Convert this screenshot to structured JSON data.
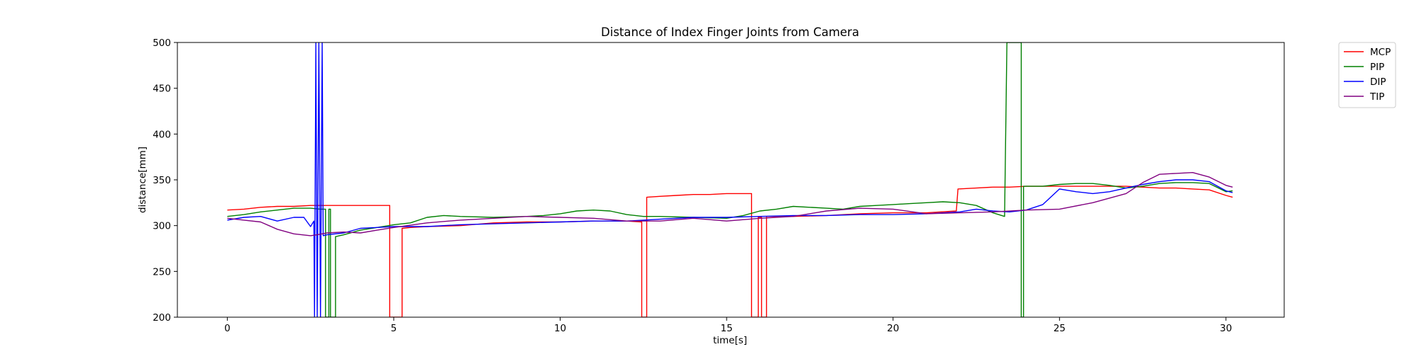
{
  "chart_data": {
    "type": "line",
    "title": "Distance of Index Finger Joints from Camera",
    "xlabel": "time[s]",
    "ylabel": "distance[mm]",
    "xlim": [
      -1.5,
      31.75
    ],
    "ylim": [
      200,
      500
    ],
    "xticks": [
      0,
      5,
      10,
      15,
      20,
      25,
      30
    ],
    "yticks": [
      200,
      250,
      300,
      350,
      400,
      450,
      500
    ],
    "grid": false,
    "legend_position": "outside-top-right",
    "series": [
      {
        "name": "MCP",
        "color": "#ff0000",
        "points": [
          [
            0,
            317
          ],
          [
            0.5,
            318
          ],
          [
            1,
            320
          ],
          [
            1.5,
            321
          ],
          [
            2,
            321
          ],
          [
            2.5,
            322
          ],
          [
            3,
            322
          ],
          [
            3.5,
            322
          ],
          [
            4,
            322
          ],
          [
            4.5,
            322
          ],
          [
            4.88,
            322
          ],
          [
            4.88,
            200
          ],
          [
            5.25,
            200
          ],
          [
            5.25,
            297
          ],
          [
            5.5,
            298
          ],
          [
            6,
            299
          ],
          [
            7,
            300
          ],
          [
            8,
            303
          ],
          [
            9,
            304
          ],
          [
            10,
            304
          ],
          [
            11,
            305
          ],
          [
            12,
            305
          ],
          [
            12.45,
            304
          ],
          [
            12.45,
            200
          ],
          [
            12.6,
            200
          ],
          [
            12.6,
            331
          ],
          [
            13,
            332
          ],
          [
            13.5,
            333
          ],
          [
            14,
            334
          ],
          [
            14.5,
            334
          ],
          [
            15,
            335
          ],
          [
            15.5,
            335
          ],
          [
            15.75,
            335
          ],
          [
            15.75,
            200
          ],
          [
            15.95,
            200
          ],
          [
            15.95,
            309
          ],
          [
            16.05,
            309
          ],
          [
            16.05,
            200
          ],
          [
            16.2,
            200
          ],
          [
            16.2,
            310
          ],
          [
            16.5,
            310
          ],
          [
            17,
            310
          ],
          [
            18,
            311
          ],
          [
            19,
            313
          ],
          [
            20,
            314
          ],
          [
            21,
            314
          ],
          [
            21.9,
            316
          ],
          [
            21.95,
            340
          ],
          [
            22.5,
            341
          ],
          [
            23,
            342
          ],
          [
            23.5,
            342
          ],
          [
            24,
            343
          ],
          [
            24.5,
            343
          ],
          [
            25,
            343
          ],
          [
            25.5,
            343
          ],
          [
            26,
            343
          ],
          [
            26.5,
            343
          ],
          [
            27,
            343
          ],
          [
            27.5,
            342
          ],
          [
            28,
            341
          ],
          [
            28.5,
            341
          ],
          [
            29,
            340
          ],
          [
            29.5,
            339
          ],
          [
            30,
            333
          ],
          [
            30.2,
            331
          ]
        ]
      },
      {
        "name": "PIP",
        "color": "#008000",
        "points": [
          [
            0,
            310
          ],
          [
            0.5,
            312
          ],
          [
            1,
            315
          ],
          [
            1.5,
            317
          ],
          [
            2,
            319
          ],
          [
            2.5,
            319
          ],
          [
            2.8,
            318
          ],
          [
            2.95,
            318
          ],
          [
            2.95,
            200
          ],
          [
            3.05,
            200
          ],
          [
            3.05,
            318
          ],
          [
            3.1,
            318
          ],
          [
            3.1,
            200
          ],
          [
            3.25,
            200
          ],
          [
            3.25,
            288
          ],
          [
            3.5,
            290
          ],
          [
            4,
            295
          ],
          [
            4.5,
            298
          ],
          [
            5,
            301
          ],
          [
            5.5,
            303
          ],
          [
            6,
            309
          ],
          [
            6.5,
            311
          ],
          [
            7,
            310
          ],
          [
            8,
            309
          ],
          [
            9,
            310
          ],
          [
            9.5,
            311
          ],
          [
            10,
            313
          ],
          [
            10.5,
            316
          ],
          [
            11,
            317
          ],
          [
            11.5,
            316
          ],
          [
            12,
            312
          ],
          [
            12.5,
            310
          ],
          [
            13,
            310
          ],
          [
            14,
            309
          ],
          [
            15,
            308
          ],
          [
            15.5,
            311
          ],
          [
            16,
            316
          ],
          [
            16.5,
            318
          ],
          [
            17,
            321
          ],
          [
            17.5,
            320
          ],
          [
            18,
            319
          ],
          [
            18.5,
            318
          ],
          [
            19,
            321
          ],
          [
            19.5,
            322
          ],
          [
            20,
            323
          ],
          [
            20.5,
            324
          ],
          [
            21,
            325
          ],
          [
            21.5,
            326
          ],
          [
            22,
            325
          ],
          [
            22.5,
            322
          ],
          [
            23,
            314
          ],
          [
            23.35,
            310
          ],
          [
            23.42,
            500
          ],
          [
            23.85,
            500
          ],
          [
            23.85,
            200
          ],
          [
            23.92,
            200
          ],
          [
            23.92,
            343
          ],
          [
            24.5,
            343
          ],
          [
            25,
            345
          ],
          [
            25.5,
            346
          ],
          [
            26,
            346
          ],
          [
            26.5,
            344
          ],
          [
            27,
            341
          ],
          [
            27.5,
            343
          ],
          [
            28,
            346
          ],
          [
            28.5,
            347
          ],
          [
            29,
            347
          ],
          [
            29.5,
            346
          ],
          [
            30,
            337
          ],
          [
            30.2,
            338
          ]
        ]
      },
      {
        "name": "DIP",
        "color": "#0000ff",
        "points": [
          [
            0,
            306
          ],
          [
            0.5,
            309
          ],
          [
            1,
            310
          ],
          [
            1.5,
            305
          ],
          [
            2,
            309
          ],
          [
            2.3,
            309
          ],
          [
            2.5,
            299
          ],
          [
            2.6,
            305
          ],
          [
            2.62,
            200
          ],
          [
            2.66,
            500
          ],
          [
            2.7,
            200
          ],
          [
            2.75,
            500
          ],
          [
            2.8,
            200
          ],
          [
            2.85,
            500
          ],
          [
            2.88,
            289
          ],
          [
            3,
            290
          ],
          [
            3.5,
            292
          ],
          [
            4,
            297
          ],
          [
            4.5,
            298
          ],
          [
            5,
            299
          ],
          [
            6,
            299
          ],
          [
            7,
            301
          ],
          [
            8,
            302
          ],
          [
            9,
            303
          ],
          [
            10,
            304
          ],
          [
            11,
            305
          ],
          [
            12,
            305
          ],
          [
            12.5,
            306
          ],
          [
            13,
            307
          ],
          [
            14,
            309
          ],
          [
            15,
            309
          ],
          [
            16,
            310
          ],
          [
            17,
            311
          ],
          [
            18,
            311
          ],
          [
            19,
            312
          ],
          [
            20,
            312
          ],
          [
            21,
            313
          ],
          [
            22,
            315
          ],
          [
            22.5,
            318
          ],
          [
            23,
            316
          ],
          [
            23.5,
            315
          ],
          [
            24,
            317
          ],
          [
            24.5,
            323
          ],
          [
            25,
            340
          ],
          [
            25.5,
            337
          ],
          [
            26,
            335
          ],
          [
            26.5,
            337
          ],
          [
            27,
            341
          ],
          [
            27.5,
            345
          ],
          [
            28,
            348
          ],
          [
            28.5,
            350
          ],
          [
            29,
            350
          ],
          [
            29.5,
            348
          ],
          [
            30,
            338
          ],
          [
            30.2,
            336
          ]
        ]
      },
      {
        "name": "TIP",
        "color": "#800080",
        "points": [
          [
            0,
            308
          ],
          [
            0.5,
            306
          ],
          [
            1,
            304
          ],
          [
            1.5,
            296
          ],
          [
            2,
            291
          ],
          [
            2.5,
            289
          ],
          [
            2.7,
            290
          ],
          [
            3,
            292
          ],
          [
            3.5,
            293
          ],
          [
            4,
            292
          ],
          [
            4.5,
            295
          ],
          [
            5,
            298
          ],
          [
            6,
            303
          ],
          [
            7,
            306
          ],
          [
            8,
            308
          ],
          [
            9,
            310
          ],
          [
            10,
            309
          ],
          [
            11,
            308
          ],
          [
            12,
            305
          ],
          [
            13,
            305
          ],
          [
            14,
            308
          ],
          [
            15,
            305
          ],
          [
            16,
            308
          ],
          [
            17,
            310
          ],
          [
            18,
            316
          ],
          [
            19,
            319
          ],
          [
            20,
            318
          ],
          [
            21,
            313
          ],
          [
            22,
            314
          ],
          [
            23,
            315
          ],
          [
            24,
            317
          ],
          [
            25,
            318
          ],
          [
            26,
            325
          ],
          [
            27,
            335
          ],
          [
            27.5,
            347
          ],
          [
            28,
            356
          ],
          [
            28.5,
            357
          ],
          [
            29,
            358
          ],
          [
            29.5,
            353
          ],
          [
            30,
            344
          ],
          [
            30.2,
            342
          ]
        ]
      }
    ]
  }
}
